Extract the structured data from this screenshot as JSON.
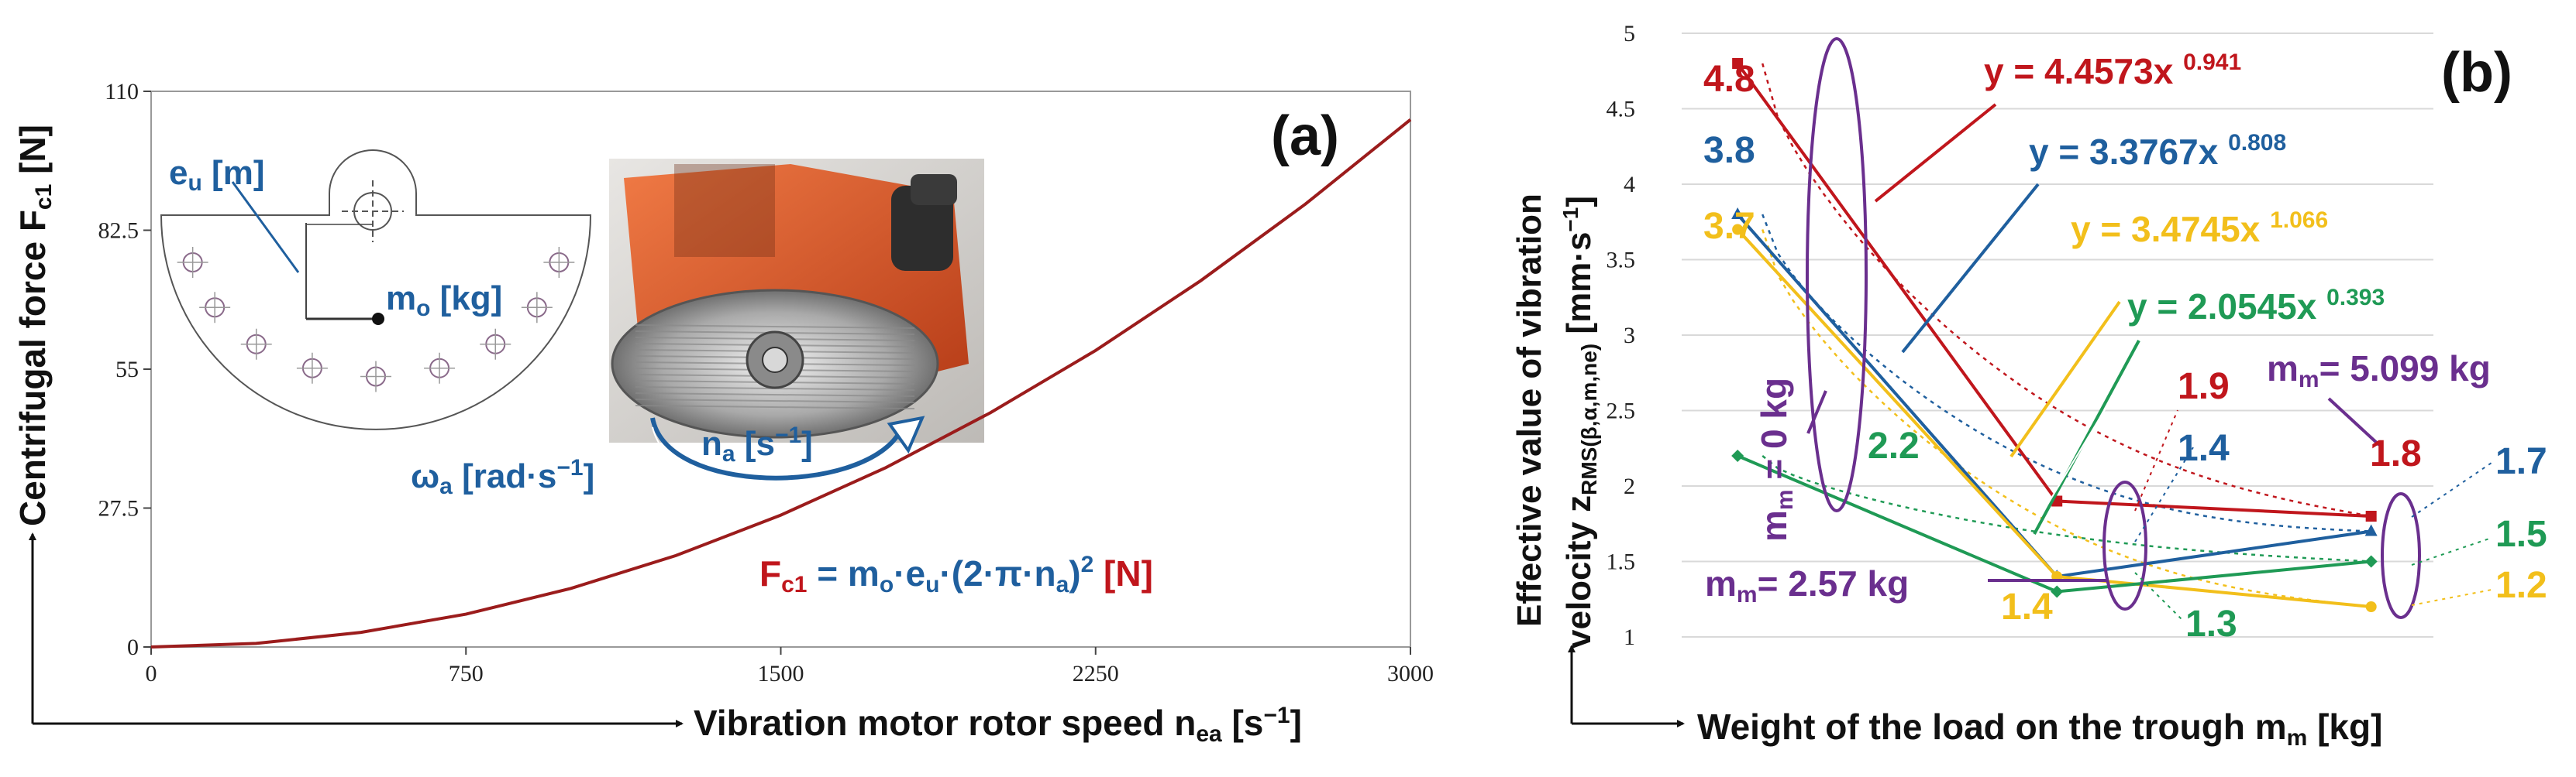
{
  "colors": {
    "red": "#c0161c",
    "blue": "#1f5f9e",
    "yellow": "#f2bf1b",
    "green": "#1f9a55",
    "purple": "#6a2f8e",
    "curve": "#9b1c1c",
    "motor_orange": "#e0582a"
  },
  "panel_a": {
    "panel_label": "(a)",
    "ylabel": "Centrifugal force F",
    "ylabel_sub": "c1",
    "ylabel_unit": " [N]",
    "xlabel": "Vibration motor rotor speed n",
    "xlabel_sub": "ea",
    "xlabel_unit": " [s",
    "xlabel_unit_sup": "−1",
    "xlabel_unit_end": "]",
    "xticks": [
      "0",
      "750",
      "1500",
      "2250",
      "3000"
    ],
    "yticks": [
      "0",
      "27.5",
      "55",
      "82.5",
      "110"
    ],
    "eu_label": "e",
    "eu_sub": "u",
    "eu_unit": " [m]",
    "mo_label": "m",
    "mo_sub": "o",
    "mo_unit": " [kg]",
    "na_label": "n",
    "na_sub": "a",
    "na_unit": " [s",
    "na_unit_sup": "−1",
    "na_unit_end": "]",
    "omega_label": "ω",
    "omega_sub": "a",
    "omega_unit": " [rad·s",
    "omega_unit_sup": "−1",
    "omega_unit_end": "]",
    "formula": {
      "F": "F",
      "F_sub": "c1",
      "eq": " = ",
      "m": "m",
      "m_sub": "o",
      "e": "·e",
      "e_sub": "u",
      "mid": "·(2·π·n",
      "n_sub": "a",
      "close": ")",
      "sup": "2",
      "unit": " [N]"
    }
  },
  "panel_b": {
    "panel_label": "(b)",
    "ylabel_line1": "Effective value of vibration",
    "ylabel_line2": "velocity z",
    "ylabel_line2_sub": "RMS(β,α,m,ne)",
    "ylabel_line2_unit": " [mm·s",
    "ylabel_line2_sup": "−1",
    "ylabel_line2_end": "]",
    "xlabel": "Weight of the load on the trough m",
    "xlabel_sub": "m",
    "xlabel_unit": " [kg]",
    "yticks": [
      "1",
      "1.5",
      "2",
      "2.5",
      "3",
      "3.5",
      "4",
      "4.5",
      "5"
    ],
    "group_labels": {
      "m0": "m",
      "m0_sub": "m",
      "m0_rest": " = 0 kg",
      "m257": "m",
      "m257_sub": "m",
      "m257_rest": "= 2.57 kg",
      "m5099": "m",
      "m5099_sub": "m",
      "m5099_rest": "= 5.099 kg"
    },
    "equations": [
      {
        "base": "y = 4.4573x ",
        "exp": "0.941",
        "color": "red"
      },
      {
        "base": "y = 3.3767x ",
        "exp": "0.808",
        "color": "blue"
      },
      {
        "base": "y = 3.4745x ",
        "exp": "1.066",
        "color": "yellow"
      },
      {
        "base": "y = 2.0545x ",
        "exp": "0.393",
        "color": "green"
      }
    ],
    "value_labels": {
      "r0": "4.8",
      "b0": "3.8",
      "y0": "3.7",
      "g0": "2.2",
      "r1": "1.9",
      "b1": "1.4",
      "y1": "1.4",
      "g1": "1.3",
      "r2": "1.8",
      "b2": "1.7",
      "g2": "1.5",
      "y2": "1.2"
    }
  },
  "chart_data": [
    {
      "type": "line",
      "title": "(a)",
      "xlabel": "Vibration motor rotor speed nea [s−1]",
      "ylabel": "Centrifugal force Fc1 [N]",
      "xlim": [
        0,
        3000
      ],
      "ylim": [
        0,
        110
      ],
      "x_ticks": [
        0,
        750,
        1500,
        2250,
        3000
      ],
      "y_ticks": [
        0,
        27.5,
        55,
        82.5,
        110
      ],
      "grid": false,
      "series": [
        {
          "name": "Fc1 = mo·eu·(2·π·na)2 [N]",
          "x": [
            0,
            250,
            500,
            750,
            1000,
            1250,
            1500,
            1750,
            2000,
            2250,
            2500,
            2750,
            3000
          ],
          "y": [
            0,
            0.7,
            2.9,
            6.5,
            11.6,
            18.1,
            26.1,
            35.5,
            46.4,
            58.7,
            72.5,
            87.7,
            104.4
          ]
        }
      ]
    },
    {
      "type": "line",
      "title": "(b)",
      "xlabel": "Weight of the load on the trough mm [kg]",
      "ylabel": "Effective value of vibration velocity zRMS(β,α,m,ne) [mm·s−1]",
      "x": [
        0,
        2.57,
        5.099
      ],
      "ylim": [
        1,
        5
      ],
      "y_ticks": [
        1,
        1.5,
        2,
        2.5,
        3,
        3.5,
        4,
        4.5,
        5
      ],
      "grid": true,
      "series": [
        {
          "color": "red",
          "values": [
            4.8,
            1.9,
            1.8
          ],
          "trend": "y = 4.4573x 0.941"
        },
        {
          "color": "blue",
          "values": [
            3.8,
            1.4,
            1.7
          ],
          "trend": "y = 3.3767x 0.808"
        },
        {
          "color": "yellow",
          "values": [
            3.7,
            1.4,
            1.2
          ],
          "trend": "y = 3.4745x 1.066"
        },
        {
          "color": "green",
          "values": [
            2.2,
            1.3,
            1.5
          ],
          "trend": "y = 2.0545x 0.393"
        }
      ]
    }
  ]
}
